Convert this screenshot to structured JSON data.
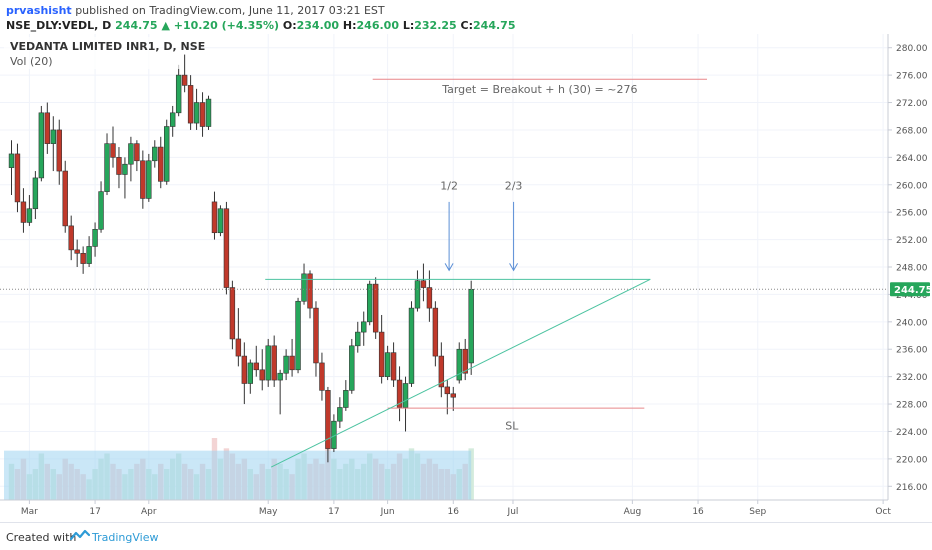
{
  "header": {
    "author": "prvashisht",
    "published": "published on TradingView.com, June 11, 2017 03:21 EST",
    "symbol": "NSE_DLY:VEDL, D",
    "last": "244.75",
    "change_arrow": "▲",
    "change": "+10.20 (+4.35%)",
    "open_label": "O:",
    "open": "234.00",
    "high_label": "H:",
    "high": "246.00",
    "low_label": "L:",
    "low": "232.25",
    "close_label": "C:",
    "close": "244.75"
  },
  "legend": {
    "title": "VEDANTA LIMITED INR1, D, NSE",
    "volume": "Vol (20)"
  },
  "annotations": {
    "target": "Target = Breakout + h (30) = ~276",
    "half": "1/2",
    "two_thirds": "2/3",
    "sl": "SL",
    "target_level": 275.4,
    "resistance_level": 246.2,
    "sl_level": 227.4,
    "arrow_tip_level": 247.5,
    "arrow_top_level": 257.5
  },
  "footer": {
    "created": "Created with",
    "brand": "TradingView"
  },
  "colors": {
    "up": "#26a65b",
    "down": "#c0392b",
    "grid": "#f0f3fa",
    "trend": "#4cc3a0",
    "target_line": "#e8868a",
    "arrow": "#5b8fd6",
    "last_badge": "#26a65b"
  },
  "chart_data": {
    "type": "candlestick",
    "symbol": "VEDL",
    "interval": "D",
    "ylim": [
      214,
      282
    ],
    "y_ticks": [
      216,
      220,
      224,
      228,
      232,
      236,
      240,
      244,
      248,
      252,
      256,
      260,
      264,
      268,
      272,
      276,
      280
    ],
    "x_labels": [
      {
        "label": "Mar",
        "bar": 3
      },
      {
        "label": "17",
        "bar": 14
      },
      {
        "label": "Apr",
        "bar": 23
      },
      {
        "label": "May",
        "bar": 43
      },
      {
        "label": "17",
        "bar": 54
      },
      {
        "label": "Jun",
        "bar": 63
      },
      {
        "label": "16",
        "bar": 74
      },
      {
        "label": "Jul",
        "bar": 84
      },
      {
        "label": "Aug",
        "bar": 104
      },
      {
        "label": "16",
        "bar": 115
      },
      {
        "label": "Sep",
        "bar": 125
      },
      {
        "label": "Oct",
        "bar": 146
      }
    ],
    "last_price": 244.75,
    "candles": [
      [
        262.5,
        266.5,
        258.5,
        264.5
      ],
      [
        264.5,
        266.0,
        256.0,
        257.5
      ],
      [
        257.5,
        259.5,
        253.0,
        254.5
      ],
      [
        254.5,
        258.5,
        254.0,
        256.5
      ],
      [
        256.5,
        262.0,
        255.0,
        261.0
      ],
      [
        261.0,
        271.5,
        260.5,
        270.5
      ],
      [
        270.5,
        272.0,
        264.5,
        266.0
      ],
      [
        266.0,
        270.0,
        262.0,
        268.0
      ],
      [
        268.0,
        269.5,
        260.0,
        262.0
      ],
      [
        262.0,
        263.5,
        253.0,
        254.0
      ],
      [
        254.0,
        255.5,
        249.0,
        250.5
      ],
      [
        250.5,
        252.0,
        248.0,
        250.0
      ],
      [
        250.0,
        251.0,
        247.0,
        248.5
      ],
      [
        248.5,
        252.5,
        248.0,
        251.0
      ],
      [
        251.0,
        254.5,
        249.5,
        253.5
      ],
      [
        253.5,
        260.5,
        253.0,
        259.0
      ],
      [
        259.0,
        267.5,
        258.5,
        266.0
      ],
      [
        266.0,
        268.5,
        262.5,
        264.0
      ],
      [
        264.0,
        265.5,
        259.5,
        261.5
      ],
      [
        261.5,
        264.0,
        258.0,
        263.0
      ],
      [
        263.0,
        267.0,
        260.5,
        266.0
      ],
      [
        266.0,
        266.5,
        262.0,
        263.5
      ],
      [
        263.5,
        265.0,
        256.5,
        258.0
      ],
      [
        258.0,
        264.5,
        257.5,
        263.5
      ],
      [
        263.5,
        266.5,
        262.5,
        265.5
      ],
      [
        265.5,
        267.0,
        259.5,
        260.5
      ],
      [
        260.5,
        269.5,
        260.0,
        268.5
      ],
      [
        268.5,
        271.5,
        267.0,
        270.5
      ],
      [
        270.5,
        277.5,
        270.0,
        276.0
      ],
      [
        276.0,
        279.0,
        273.5,
        274.5
      ],
      [
        274.5,
        276.0,
        268.0,
        269.0
      ],
      [
        269.0,
        274.0,
        268.0,
        272.0
      ],
      [
        272.0,
        273.5,
        267.0,
        268.5
      ],
      [
        268.5,
        273.0,
        268.0,
        272.5
      ],
      [
        257.5,
        259.0,
        252.0,
        253.0
      ],
      [
        253.0,
        257.0,
        252.5,
        256.5
      ],
      [
        256.5,
        257.5,
        244.0,
        245.0
      ],
      [
        245.0,
        246.0,
        236.0,
        237.5
      ],
      [
        237.5,
        242.0,
        233.5,
        235.0
      ],
      [
        235.0,
        237.0,
        228.0,
        231.0
      ],
      [
        231.0,
        234.5,
        229.5,
        234.0
      ],
      [
        234.0,
        236.5,
        232.0,
        233.0
      ],
      [
        233.0,
        236.0,
        230.0,
        231.5
      ],
      [
        231.5,
        237.5,
        230.5,
        236.5
      ],
      [
        236.5,
        238.0,
        230.5,
        231.5
      ],
      [
        231.5,
        233.0,
        226.5,
        232.5
      ],
      [
        232.5,
        236.0,
        231.5,
        235.0
      ],
      [
        235.0,
        237.5,
        232.0,
        233.0
      ],
      [
        233.0,
        243.5,
        232.5,
        243.0
      ],
      [
        243.0,
        248.5,
        242.5,
        247.0
      ],
      [
        247.0,
        247.5,
        240.5,
        242.0
      ],
      [
        242.0,
        243.0,
        232.0,
        234.0
      ],
      [
        234.0,
        235.5,
        228.5,
        230.0
      ],
      [
        230.0,
        230.5,
        219.5,
        221.5
      ],
      [
        221.5,
        226.5,
        221.0,
        225.5
      ],
      [
        225.5,
        229.0,
        224.5,
        227.5
      ],
      [
        227.5,
        231.5,
        227.0,
        230.0
      ],
      [
        230.0,
        237.5,
        229.5,
        236.5
      ],
      [
        236.5,
        240.0,
        235.5,
        238.5
      ],
      [
        238.5,
        241.5,
        236.5,
        240.0
      ],
      [
        240.0,
        246.0,
        239.5,
        245.5
      ],
      [
        245.5,
        246.5,
        237.5,
        238.5
      ],
      [
        238.5,
        241.0,
        231.0,
        232.0
      ],
      [
        232.0,
        236.5,
        231.5,
        235.5
      ],
      [
        235.5,
        237.0,
        230.5,
        231.5
      ],
      [
        231.5,
        233.5,
        225.5,
        227.5
      ],
      [
        227.5,
        232.0,
        224.0,
        231.0
      ],
      [
        231.0,
        243.0,
        230.5,
        242.0
      ],
      [
        242.0,
        247.5,
        241.5,
        246.0
      ],
      [
        246.0,
        248.5,
        243.0,
        245.0
      ],
      [
        245.0,
        247.5,
        240.0,
        242.0
      ],
      [
        242.0,
        243.0,
        233.5,
        235.0
      ],
      [
        235.0,
        237.0,
        229.0,
        230.5
      ],
      [
        230.5,
        231.5,
        226.5,
        229.5
      ],
      [
        229.5,
        230.5,
        227.0,
        229.0
      ],
      [
        231.5,
        237.0,
        231.0,
        236.0
      ],
      [
        236.0,
        237.5,
        231.5,
        232.5
      ],
      [
        234.0,
        246.0,
        232.25,
        244.75
      ]
    ],
    "volume": [
      7,
      6,
      8,
      5,
      6,
      9,
      7,
      6,
      5,
      8,
      7,
      6,
      5,
      4,
      6,
      8,
      9,
      7,
      6,
      5,
      6,
      7,
      8,
      6,
      5,
      7,
      6,
      8,
      9,
      7,
      6,
      5,
      7,
      6,
      12,
      8,
      10,
      9,
      7,
      8,
      6,
      5,
      7,
      6,
      8,
      7,
      6,
      5,
      8,
      9,
      7,
      8,
      7,
      11,
      8,
      6,
      7,
      8,
      6,
      7,
      9,
      8,
      7,
      6,
      7,
      9,
      8,
      10,
      9,
      7,
      8,
      7,
      6,
      6,
      5,
      6,
      7,
      10
    ]
  }
}
